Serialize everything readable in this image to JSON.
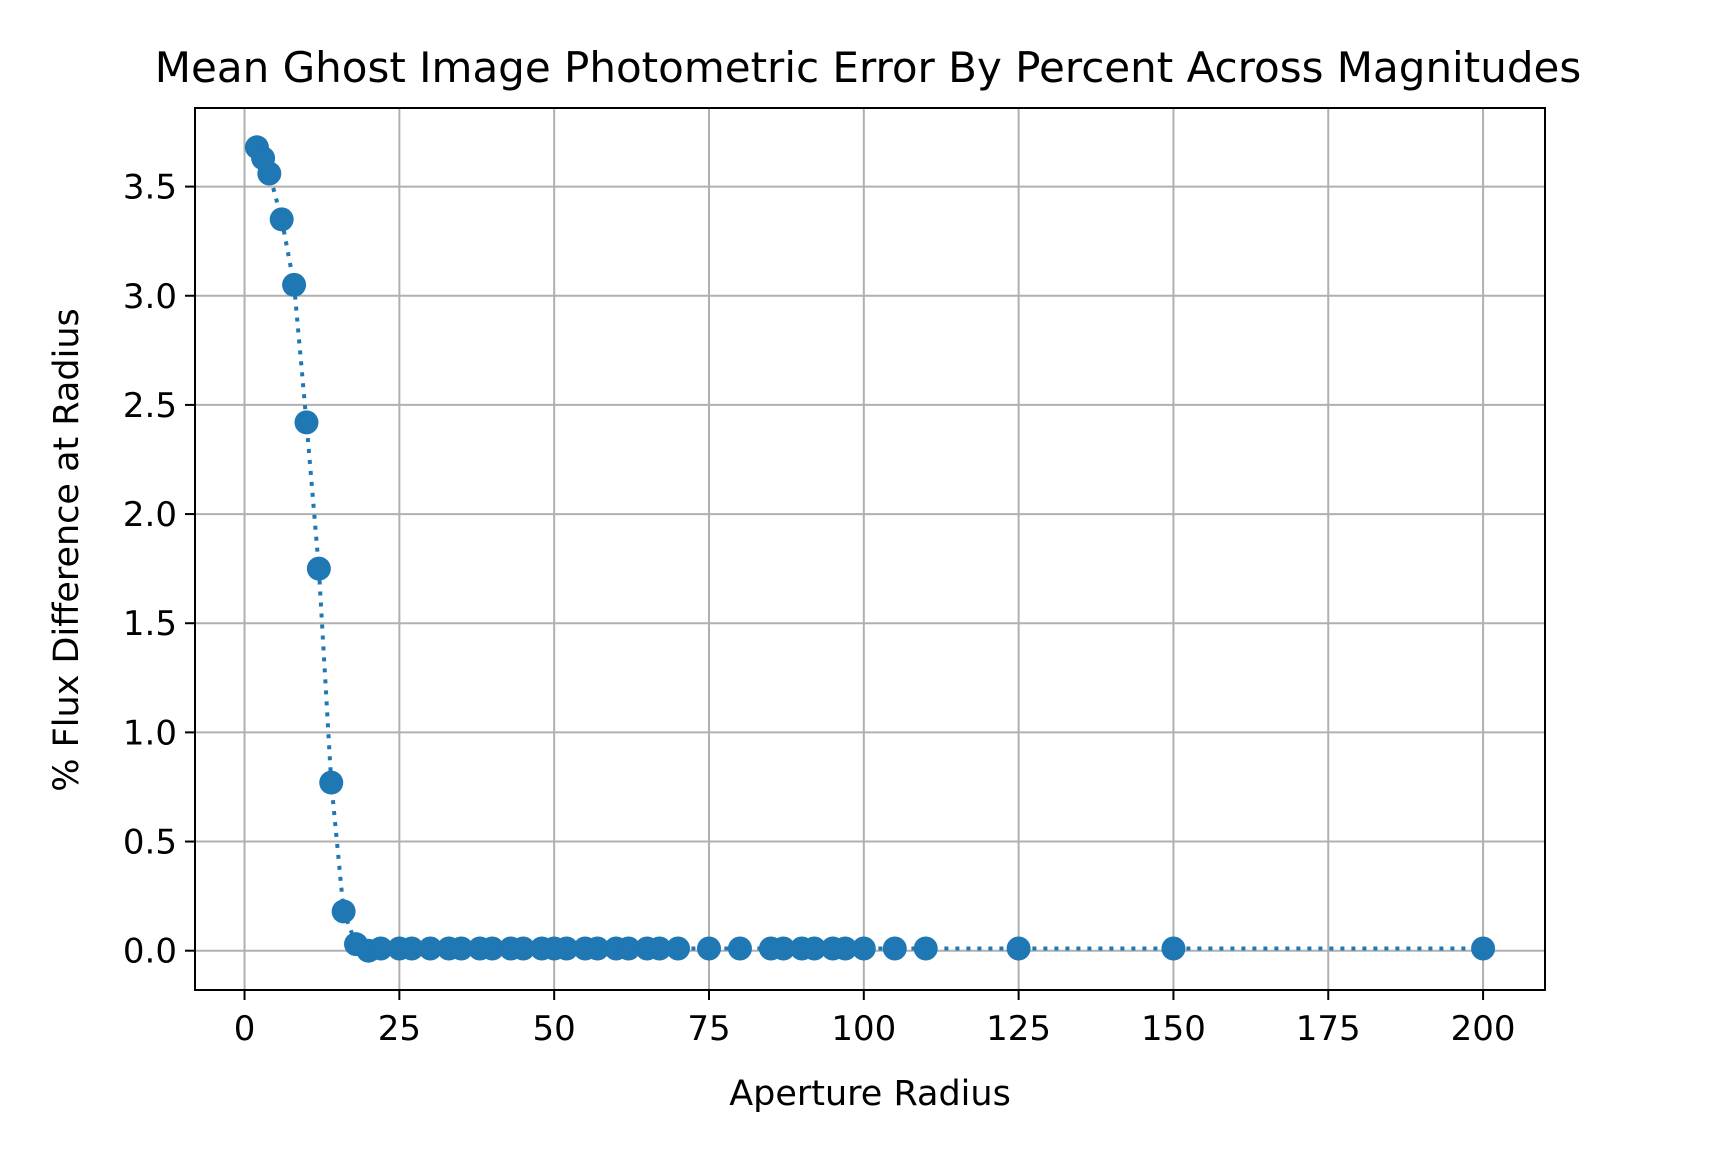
{
  "chart_data": {
    "type": "scatter",
    "title": "Mean Ghost Image Photometric Error By Percent Across Magnitudes",
    "xlabel": "Aperture Radius",
    "ylabel": "% Flux Difference at Radius",
    "xlim": [
      -8,
      210
    ],
    "ylim": [
      -0.18,
      3.86
    ],
    "xticks": [
      0,
      25,
      50,
      75,
      100,
      125,
      150,
      175,
      200
    ],
    "xtick_labels": [
      "0",
      "25",
      "50",
      "75",
      "100",
      "125",
      "150",
      "175",
      "200"
    ],
    "yticks": [
      0.0,
      0.5,
      1.0,
      1.5,
      2.0,
      2.5,
      3.0,
      3.5
    ],
    "ytick_labels": [
      "0.0",
      "0.5",
      "1.0",
      "1.5",
      "2.0",
      "2.5",
      "3.0",
      "3.5"
    ],
    "grid": true,
    "line_style": "dotted",
    "marker": "circle",
    "color": "#1f77b4",
    "series": [
      {
        "x": [
          2,
          3,
          4,
          6,
          8,
          10,
          12,
          14,
          16,
          18,
          20,
          22,
          25,
          27,
          30,
          33,
          35,
          38,
          40,
          43,
          45,
          48,
          50,
          52,
          55,
          57,
          60,
          62,
          65,
          67,
          70,
          75,
          80,
          85,
          87,
          90,
          92,
          95,
          97,
          100,
          105,
          110,
          125,
          150,
          200
        ],
        "y": [
          3.68,
          3.63,
          3.56,
          3.35,
          3.05,
          2.42,
          1.75,
          0.77,
          0.18,
          0.03,
          0.0,
          0.01,
          0.01,
          0.01,
          0.01,
          0.01,
          0.01,
          0.01,
          0.01,
          0.01,
          0.01,
          0.01,
          0.01,
          0.01,
          0.01,
          0.01,
          0.01,
          0.01,
          0.01,
          0.01,
          0.01,
          0.01,
          0.01,
          0.01,
          0.01,
          0.01,
          0.01,
          0.01,
          0.01,
          0.01,
          0.01,
          0.01,
          0.01,
          0.01,
          0.01
        ]
      }
    ]
  }
}
